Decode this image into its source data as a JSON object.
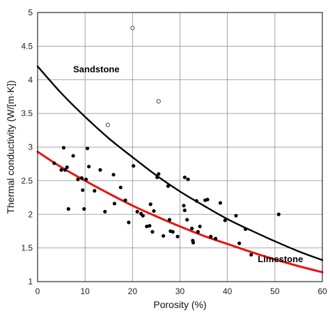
{
  "chart_data": {
    "type": "scatter",
    "xlabel": "Porosity (%)",
    "ylabel": "Thermal conductivity (W/[m·K])",
    "xlim": [
      0,
      60
    ],
    "ylim": [
      1,
      5
    ],
    "xticks": [
      "0",
      "10",
      "20",
      "30",
      "40",
      "50",
      "60"
    ],
    "yticks": [
      "1",
      "1.5",
      "2",
      "2.5",
      "3",
      "3.5",
      "4",
      "4.5",
      "5"
    ],
    "grid": true,
    "series": [
      {
        "name": "Sandstone",
        "kind": "curve",
        "color": "#000000",
        "points": [
          [
            0,
            4.2
          ],
          [
            5,
            3.8
          ],
          [
            10,
            3.45
          ],
          [
            15,
            3.13
          ],
          [
            20,
            2.85
          ],
          [
            25,
            2.58
          ],
          [
            30,
            2.34
          ],
          [
            35,
            2.13
          ],
          [
            40,
            1.93
          ],
          [
            45,
            1.76
          ],
          [
            50,
            1.6
          ],
          [
            55,
            1.45
          ],
          [
            60,
            1.32
          ]
        ]
      },
      {
        "name": "Limestone",
        "kind": "curve",
        "color": "#e8140c",
        "points": [
          [
            0,
            2.93
          ],
          [
            5,
            2.7
          ],
          [
            10,
            2.5
          ],
          [
            15,
            2.31
          ],
          [
            20,
            2.13
          ],
          [
            25,
            1.97
          ],
          [
            30,
            1.82
          ],
          [
            35,
            1.68
          ],
          [
            40,
            1.56
          ],
          [
            45,
            1.44
          ],
          [
            50,
            1.33
          ],
          [
            55,
            1.23
          ],
          [
            60,
            1.14
          ]
        ]
      },
      {
        "kind": "filled-markers",
        "points": [
          [
            3.5,
            2.76
          ],
          [
            5.0,
            2.66
          ],
          [
            5.5,
            2.99
          ],
          [
            5.8,
            2.66
          ],
          [
            6.2,
            2.7
          ],
          [
            6.5,
            2.08
          ],
          [
            7.5,
            2.87
          ],
          [
            8.5,
            2.52
          ],
          [
            9.3,
            2.54
          ],
          [
            9.5,
            2.36
          ],
          [
            9.8,
            2.08
          ],
          [
            10.2,
            2.52
          ],
          [
            10.5,
            2.98
          ],
          [
            10.8,
            2.71
          ],
          [
            12.0,
            2.35
          ],
          [
            13.2,
            2.66
          ],
          [
            14.2,
            2.04
          ],
          [
            16.0,
            2.59
          ],
          [
            16.2,
            2.16
          ],
          [
            17.5,
            2.4
          ],
          [
            18.5,
            2.21
          ],
          [
            19.2,
            1.88
          ],
          [
            20.2,
            2.72
          ],
          [
            21.0,
            2.04
          ],
          [
            21.8,
            2.01
          ],
          [
            22.2,
            1.98
          ],
          [
            23.0,
            1.82
          ],
          [
            23.6,
            1.83
          ],
          [
            23.8,
            2.15
          ],
          [
            24.2,
            1.74
          ],
          [
            24.5,
            2.05
          ],
          [
            25.2,
            2.55
          ],
          [
            25.5,
            2.6
          ],
          [
            26.5,
            1.68
          ],
          [
            27.5,
            2.42
          ],
          [
            27.8,
            1.92
          ],
          [
            28.0,
            1.75
          ],
          [
            28.5,
            1.74
          ],
          [
            29.5,
            1.67
          ],
          [
            30.8,
            2.13
          ],
          [
            31.0,
            2.06
          ],
          [
            31.0,
            2.55
          ],
          [
            31.5,
            1.92
          ],
          [
            31.7,
            2.52
          ],
          [
            32.5,
            1.79
          ],
          [
            32.7,
            1.61
          ],
          [
            32.8,
            1.58
          ],
          [
            33.5,
            2.2
          ],
          [
            33.8,
            1.74
          ],
          [
            34.2,
            1.82
          ],
          [
            35.3,
            2.21
          ],
          [
            35.8,
            2.22
          ],
          [
            36.5,
            1.67
          ],
          [
            37.5,
            1.64
          ],
          [
            38.5,
            2.17
          ],
          [
            39.5,
            1.91
          ],
          [
            41.8,
            1.98
          ],
          [
            42.5,
            1.57
          ],
          [
            43.8,
            1.78
          ],
          [
            45.0,
            1.4
          ],
          [
            50.8,
            2.0
          ]
        ]
      },
      {
        "kind": "open-markers",
        "points": [
          [
            14.8,
            3.33
          ],
          [
            20.0,
            4.77
          ],
          [
            25.5,
            3.68
          ]
        ]
      }
    ]
  }
}
